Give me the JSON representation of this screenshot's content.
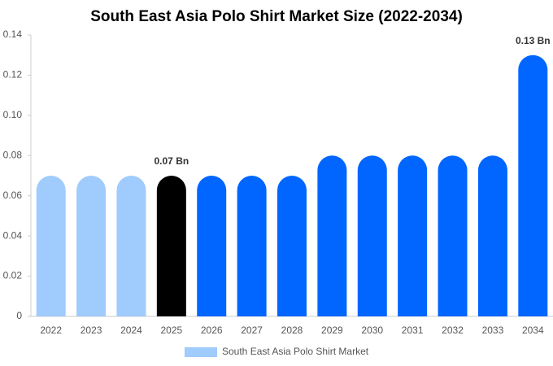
{
  "chart_data": {
    "type": "bar",
    "title": "South East Asia Polo Shirt Market Size (2022-2034)",
    "categories": [
      "2022",
      "2023",
      "2024",
      "2025",
      "2026",
      "2027",
      "2028",
      "2029",
      "2030",
      "2031",
      "2032",
      "2033",
      "2034"
    ],
    "series": [
      {
        "name": "South East Asia Polo Shirt Market",
        "color": "#a0cbfd",
        "values": [
          0.07,
          0.07,
          0.07,
          0.07,
          0.07,
          0.07,
          0.07,
          0.08,
          0.08,
          0.08,
          0.08,
          0.08,
          0.13
        ],
        "value_labels": [
          null,
          null,
          null,
          "0.07 Bn",
          null,
          null,
          null,
          null,
          null,
          null,
          null,
          null,
          "0.13 Bn"
        ],
        "colors": [
          "#a0cbfd",
          "#a0cbfd",
          "#a0cbfd",
          "#000000",
          "#0066ff",
          "#0066ff",
          "#0066ff",
          "#0066ff",
          "#0066ff",
          "#0066ff",
          "#0066ff",
          "#0066ff",
          "#0066ff"
        ]
      }
    ],
    "ylim": [
      0,
      0.14
    ],
    "yticks": [
      0,
      0.02,
      0.04,
      0.06,
      0.08,
      {
        "value": 0.1,
        "label": "0.10"
      },
      0.12,
      0.14
    ],
    "grid": false,
    "legend": "bottom"
  }
}
